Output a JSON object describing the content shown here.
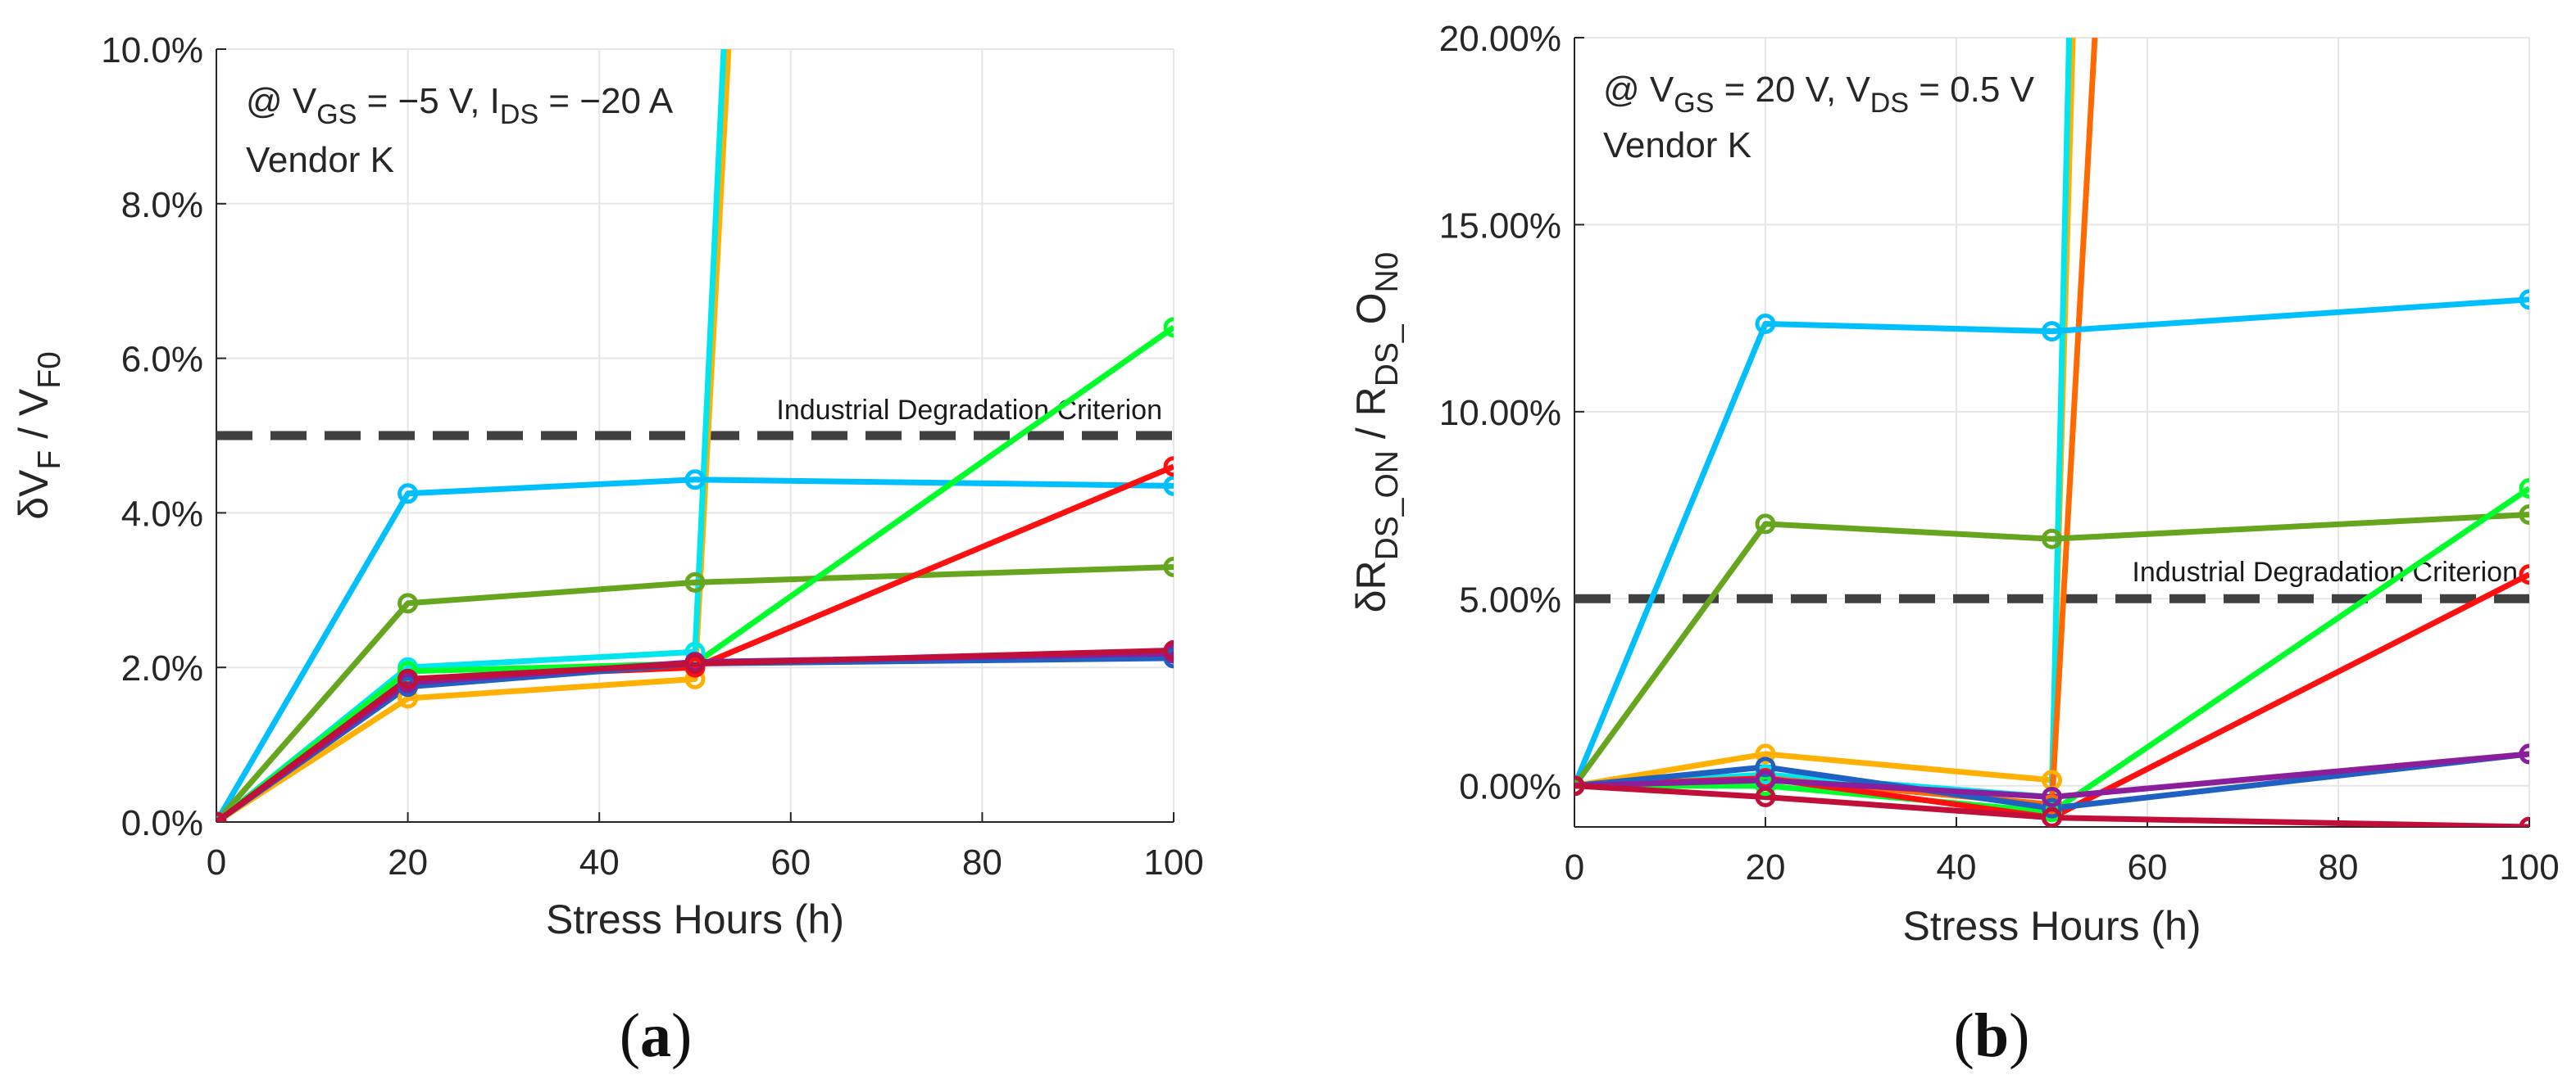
{
  "chart_data": [
    {
      "type": "line",
      "panel_label": "(a)",
      "xlabel": "Stress Hours (h)",
      "ylabel": {
        "parts": [
          {
            "t": "δV",
            "s": "n"
          },
          {
            "t": "F",
            "s": "sub"
          },
          {
            "t": " / V",
            "s": "n"
          },
          {
            "t": "F0",
            "s": "sub"
          }
        ]
      },
      "annotation_lines": [
        {
          "parts": [
            {
              "t": "@ V",
              "s": "n"
            },
            {
              "t": "GS",
              "s": "sub"
            },
            {
              "t": " = −5 V, I",
              "s": "n"
            },
            {
              "t": "DS",
              "s": "sub"
            },
            {
              "t": " = −20 A",
              "s": "n"
            }
          ]
        },
        {
          "parts": [
            {
              "t": "Vendor K",
              "s": "n"
            }
          ]
        }
      ],
      "xlim": [
        0,
        100
      ],
      "ylim": [
        0,
        10
      ],
      "xticks": [
        0,
        20,
        40,
        60,
        80,
        100
      ],
      "xtick_labels": [
        "0",
        "20",
        "40",
        "60",
        "80",
        "100"
      ],
      "yticks": [
        0,
        2,
        4,
        6,
        8,
        10
      ],
      "ytick_labels": [
        "0.0%",
        "2.0%",
        "4.0%",
        "6.0%",
        "8.0%",
        "10.0%"
      ],
      "grid": true,
      "threshold": {
        "y": 5,
        "label": "Industrial Degradation Criterion"
      },
      "series": [
        {
          "color": "#ffb000",
          "x": [
            0,
            20,
            50,
            53.5
          ],
          "y": [
            0,
            1.6,
            1.85,
            10
          ]
        },
        {
          "color": "#00e5ee",
          "x": [
            0,
            20,
            50,
            53
          ],
          "y": [
            0,
            2.0,
            2.2,
            10
          ]
        },
        {
          "color": "#00bfff",
          "x": [
            0,
            20,
            50,
            100
          ],
          "y": [
            0,
            4.25,
            4.43,
            4.35
          ]
        },
        {
          "color": "#66a61e",
          "x": [
            0,
            20,
            50,
            100
          ],
          "y": [
            0,
            2.83,
            3.1,
            3.3
          ]
        },
        {
          "color": "#00ff2a",
          "x": [
            0,
            20,
            50,
            100
          ],
          "y": [
            0,
            1.95,
            2.05,
            6.4
          ]
        },
        {
          "color": "#ff1010",
          "x": [
            0,
            20,
            50,
            100
          ],
          "y": [
            0,
            1.85,
            2.0,
            4.6
          ]
        },
        {
          "color": "#2060c0",
          "x": [
            0,
            20,
            50,
            100
          ],
          "y": [
            0,
            1.75,
            2.05,
            2.12
          ]
        },
        {
          "color": "#8b1f9b",
          "x": [
            0,
            20,
            50,
            100
          ],
          "y": [
            0,
            1.8,
            2.07,
            2.18
          ]
        },
        {
          "color": "#c0103a",
          "x": [
            0,
            20,
            50,
            100
          ],
          "y": [
            0,
            1.85,
            2.05,
            2.22
          ]
        }
      ]
    },
    {
      "type": "line",
      "panel_label": "(b)",
      "xlabel": "Stress Hours (h)",
      "ylabel": {
        "parts": [
          {
            "t": "δR",
            "s": "n"
          },
          {
            "t": "DS_ON",
            "s": "sub"
          },
          {
            "t": " / R",
            "s": "n"
          },
          {
            "t": "DS_",
            "s": "sub"
          },
          {
            "t": "O",
            "s": "n"
          },
          {
            "t": "N0",
            "s": "sub"
          }
        ]
      },
      "annotation_lines": [
        {
          "parts": [
            {
              "t": "@ V",
              "s": "n"
            },
            {
              "t": "GS",
              "s": "sub"
            },
            {
              "t": " = 20 V, V",
              "s": "n"
            },
            {
              "t": "DS",
              "s": "sub"
            },
            {
              "t": " = 0.5 V",
              "s": "n"
            }
          ]
        },
        {
          "parts": [
            {
              "t": "Vendor K",
              "s": "n"
            }
          ]
        }
      ],
      "xlim": [
        0,
        100
      ],
      "ylim": [
        -1.1,
        20
      ],
      "xticks": [
        0,
        20,
        40,
        60,
        80,
        100
      ],
      "xtick_labels": [
        "0",
        "20",
        "40",
        "60",
        "80",
        "100"
      ],
      "yticks": [
        0,
        5,
        10,
        15,
        20
      ],
      "ytick_labels": [
        "0.00%",
        "5.00%",
        "10.00%",
        "15.00%",
        "20.00%"
      ],
      "grid": true,
      "threshold": {
        "y": 5,
        "label": "Industrial Degradation Criterion"
      },
      "series": [
        {
          "color": "#ffb000",
          "x": [
            0,
            20,
            50,
            52.2
          ],
          "y": [
            0,
            0.85,
            0.15,
            20
          ]
        },
        {
          "color": "#00e5ee",
          "x": [
            0,
            20,
            50,
            51.8
          ],
          "y": [
            0,
            0.3,
            -0.3,
            20
          ]
        },
        {
          "color": "#ff6a00",
          "x": [
            0,
            20,
            50,
            54.5
          ],
          "y": [
            0,
            0.2,
            -0.5,
            20
          ]
        },
        {
          "color": "#00bfff",
          "x": [
            0,
            20,
            50,
            100
          ],
          "y": [
            0,
            12.35,
            12.15,
            13.0
          ]
        },
        {
          "color": "#66a61e",
          "x": [
            0,
            20,
            50,
            100
          ],
          "y": [
            0,
            7.0,
            6.6,
            7.25
          ]
        },
        {
          "color": "#00ff2a",
          "x": [
            0,
            20,
            50,
            100
          ],
          "y": [
            0,
            0.0,
            -0.7,
            7.95
          ]
        },
        {
          "color": "#ff1010",
          "x": [
            0,
            20,
            50,
            100
          ],
          "y": [
            0,
            0.2,
            -0.85,
            5.65
          ]
        },
        {
          "color": "#2060c0",
          "x": [
            0,
            20,
            50,
            100
          ],
          "y": [
            0,
            0.5,
            -0.6,
            0.85
          ]
        },
        {
          "color": "#8b1f9b",
          "x": [
            0,
            20,
            50,
            100
          ],
          "y": [
            0,
            0.15,
            -0.3,
            0.85
          ]
        },
        {
          "color": "#c0103a",
          "x": [
            0,
            20,
            50,
            100
          ],
          "y": [
            0,
            -0.3,
            -0.85,
            -1.1
          ]
        }
      ]
    }
  ]
}
